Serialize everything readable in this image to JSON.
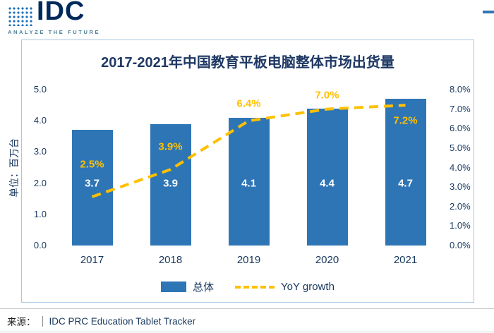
{
  "logo": {
    "text": "IDC",
    "tagline": "ANALYZE THE FUTURE"
  },
  "accent_color": "#2F76B5",
  "chart_data": {
    "type": "bar",
    "title": "2017-2021年中国教育平板电脑整体市场出货量",
    "categories": [
      "2017",
      "2018",
      "2019",
      "2020",
      "2021"
    ],
    "series": [
      {
        "name": "总体",
        "type": "bar",
        "axis": "left",
        "color": "#2E75B6",
        "values": [
          3.7,
          3.9,
          4.1,
          4.4,
          4.7
        ],
        "labels": [
          "3.7",
          "3.9",
          "4.1",
          "4.4",
          "4.7"
        ],
        "label_color": "#FFFFFF"
      },
      {
        "name": "YoY growth",
        "type": "line",
        "axis": "right",
        "color": "#FFC000",
        "dashed": true,
        "values": [
          2.5,
          3.9,
          6.4,
          7.0,
          7.2
        ],
        "labels": [
          "2.5%",
          "3.9%",
          "6.4%",
          "7.0%",
          "7.2%"
        ],
        "label_dy": [
          -46,
          -32,
          -24,
          -20,
          22
        ],
        "label_color": "#FFC000"
      }
    ],
    "left_axis": {
      "title": "单位：百万台",
      "min": 0,
      "max": 5,
      "ticks": [
        "5.0",
        "4.0",
        "3.0",
        "2.0",
        "1.0",
        "0.0"
      ]
    },
    "right_axis": {
      "min": 0,
      "max": 8,
      "ticks": [
        "8.0%",
        "7.0%",
        "6.0%",
        "5.0%",
        "4.0%",
        "3.0%",
        "2.0%",
        "1.0%",
        "0.0%"
      ]
    },
    "legend": [
      {
        "label": "总体",
        "swatch": "bar"
      },
      {
        "label": "YoY growth",
        "swatch": "dashed-line"
      }
    ],
    "grid": false,
    "legend_position": "bottom"
  },
  "footer": {
    "source_label": "来源：",
    "source_text": "IDC PRC Education Tablet Tracker"
  }
}
